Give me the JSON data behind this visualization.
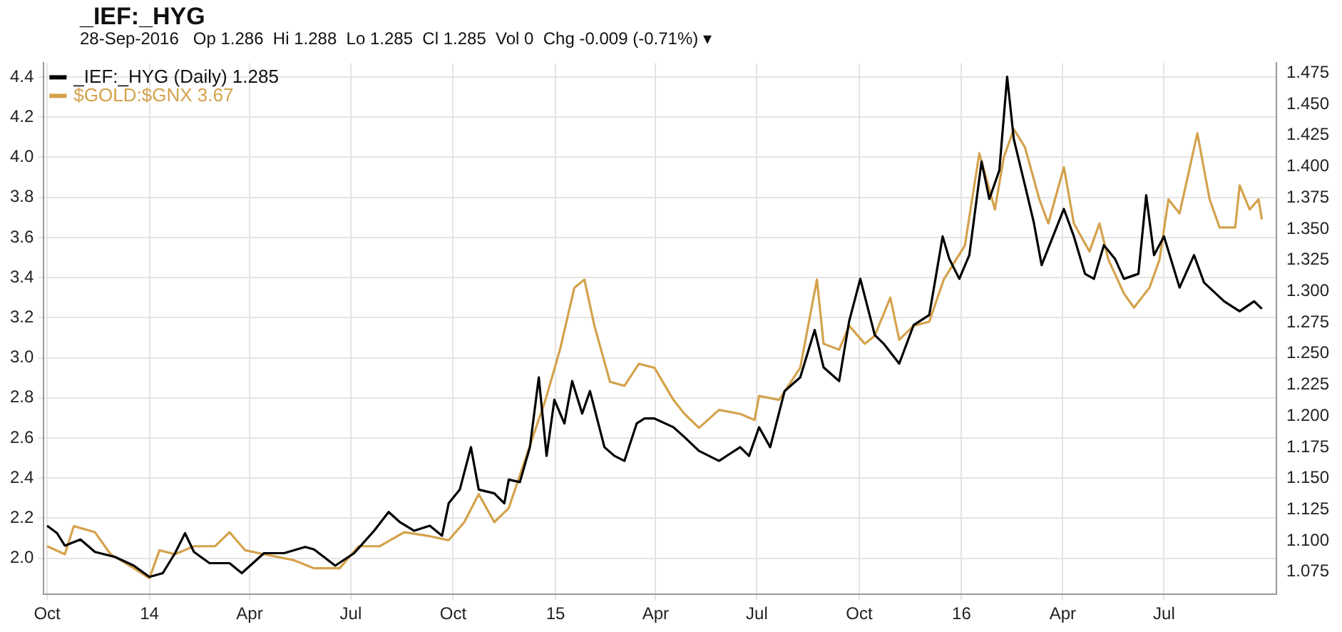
{
  "chart_data": {
    "type": "line",
    "title": "_IEF:_HYG",
    "subtitle": "28-Sep-2016   Op 1.286  Hi 1.288  Lo 1.285  Cl 1.285  Vol 0  Chg -0.009 (-0.71%) ▾",
    "legend": "top left",
    "grid": true,
    "marker": "none",
    "line_style": "solid",
    "xlim": [
      "2013-09-28",
      "2016-10-10"
    ],
    "xticks": [
      {
        "value": "2013-10-01",
        "label": "Oct"
      },
      {
        "value": "2014-01-01",
        "label": "14"
      },
      {
        "value": "2014-04-01",
        "label": "Apr"
      },
      {
        "value": "2014-07-01",
        "label": "Jul"
      },
      {
        "value": "2014-10-01",
        "label": "Oct"
      },
      {
        "value": "2015-01-01",
        "label": "15"
      },
      {
        "value": "2015-04-01",
        "label": "Apr"
      },
      {
        "value": "2015-07-01",
        "label": "Jul"
      },
      {
        "value": "2015-10-01",
        "label": "Oct"
      },
      {
        "value": "2016-01-01",
        "label": "16"
      },
      {
        "value": "2016-04-01",
        "label": "Apr"
      },
      {
        "value": "2016-07-01",
        "label": "Jul"
      }
    ],
    "ylim": [
      1.82,
      4.47
    ],
    "yticks": [
      {
        "value": 2,
        "label": "2.0"
      },
      {
        "value": 2.2,
        "label": "2.2"
      },
      {
        "value": 2.4,
        "label": "2.4"
      },
      {
        "value": 2.6,
        "label": "2.6"
      },
      {
        "value": 2.8,
        "label": "2.8"
      },
      {
        "value": 3,
        "label": "3.0"
      },
      {
        "value": 3.2,
        "label": "3.2"
      },
      {
        "value": 3.4,
        "label": "3.4"
      },
      {
        "value": 3.6,
        "label": "3.6"
      },
      {
        "value": 3.8,
        "label": "3.8"
      },
      {
        "value": 4,
        "label": "4.0"
      },
      {
        "value": 4.2,
        "label": "4.2"
      },
      {
        "value": 4.4,
        "label": "4.4"
      }
    ],
    "y2lim": [
      1.057,
      1.483
    ],
    "y2ticks": [
      1.075,
      {
        "value": 1.1,
        "label": "1.100"
      },
      1.125,
      {
        "value": 1.15,
        "label": "1.150"
      },
      1.175,
      {
        "value": 1.2,
        "label": "1.200"
      },
      1.225,
      {
        "value": 1.25,
        "label": "1.250"
      },
      1.275,
      {
        "value": 1.3,
        "label": "1.300"
      },
      1.325,
      {
        "value": 1.35,
        "label": "1.350"
      },
      1.375,
      {
        "value": 1.4,
        "label": "1.400"
      },
      1.425,
      {
        "value": 1.45,
        "label": "1.450"
      },
      1.475
    ],
    "series": [
      {
        "name": "_IEF:_HYG (Daily) 1.285",
        "color": "#000000",
        "axis": "y2",
        "x": [
          "2013-10-01",
          "2013-10-10",
          "2013-10-17",
          "2013-10-31",
          "2013-11-13",
          "2013-12-01",
          "2013-12-18",
          "2014-01-01",
          "2014-01-13",
          "2014-01-24",
          "2014-02-02",
          "2014-02-10",
          "2014-02-24",
          "2014-03-14",
          "2014-03-25",
          "2014-04-14",
          "2014-05-02",
          "2014-05-21",
          "2014-05-29",
          "2014-06-17",
          "2014-07-04",
          "2014-07-22",
          "2014-08-04",
          "2014-08-14",
          "2014-08-27",
          "2014-09-10",
          "2014-09-21",
          "2014-09-27",
          "2014-10-07",
          "2014-10-17",
          "2014-10-24",
          "2014-11-07",
          "2014-11-16",
          "2014-11-20",
          "2014-11-30",
          "2014-12-09",
          "2014-12-17",
          "2014-12-24",
          "2014-12-31",
          "2015-01-09",
          "2015-01-16",
          "2015-01-25",
          "2015-02-01",
          "2015-02-14",
          "2015-02-23",
          "2015-03-04",
          "2015-03-15",
          "2015-03-22",
          "2015-03-31",
          "2015-04-17",
          "2015-04-27",
          "2015-05-10",
          "2015-05-28",
          "2015-06-16",
          "2015-06-24",
          "2015-07-03",
          "2015-07-13",
          "2015-07-26",
          "2015-08-09",
          "2015-08-22",
          "2015-08-30",
          "2015-09-13",
          "2015-09-22",
          "2015-10-02",
          "2015-10-15",
          "2015-10-23",
          "2015-11-06",
          "2015-11-19",
          "2015-12-03",
          "2015-12-08",
          "2015-12-15",
          "2015-12-21",
          "2015-12-30",
          "2016-01-08",
          "2016-01-19",
          "2016-01-26",
          "2016-02-04",
          "2016-02-11",
          "2016-02-17",
          "2016-02-27",
          "2016-03-06",
          "2016-03-13",
          "2016-03-25",
          "2016-04-02",
          "2016-04-11",
          "2016-04-21",
          "2016-04-29",
          "2016-05-08",
          "2016-05-18",
          "2016-05-26",
          "2016-06-08",
          "2016-06-15",
          "2016-06-22",
          "2016-07-01",
          "2016-07-15",
          "2016-07-28",
          "2016-08-06",
          "2016-08-24",
          "2016-09-07",
          "2016-09-20",
          "2016-09-27"
        ],
        "values": [
          1.112,
          1.106,
          1.096,
          1.101,
          1.091,
          1.087,
          1.08,
          1.071,
          1.074,
          1.09,
          1.106,
          1.091,
          1.082,
          1.082,
          1.074,
          1.09,
          1.09,
          1.095,
          1.093,
          1.08,
          1.09,
          1.108,
          1.123,
          1.115,
          1.108,
          1.112,
          1.104,
          1.13,
          1.141,
          1.175,
          1.141,
          1.138,
          1.13,
          1.149,
          1.147,
          1.175,
          1.231,
          1.168,
          1.213,
          1.194,
          1.228,
          1.202,
          1.22,
          1.175,
          1.168,
          1.164,
          1.194,
          1.198,
          1.198,
          1.191,
          1.183,
          1.172,
          1.164,
          1.175,
          1.168,
          1.191,
          1.175,
          1.22,
          1.231,
          1.269,
          1.239,
          1.228,
          1.276,
          1.31,
          1.265,
          1.258,
          1.242,
          1.273,
          1.281,
          1.307,
          1.344,
          1.326,
          1.31,
          1.329,
          1.404,
          1.374,
          1.397,
          1.472,
          1.422,
          1.385,
          1.355,
          1.321,
          1.348,
          1.366,
          1.344,
          1.314,
          1.31,
          1.337,
          1.326,
          1.31,
          1.314,
          1.377,
          1.329,
          1.344,
          1.303,
          1.329,
          1.307,
          1.292,
          1.284,
          1.292,
          1.286
        ]
      },
      {
        "name": "$GOLD:$GNX 3.67",
        "color": "#d4a24c",
        "x": [
          "2013-10-01",
          "2013-10-17",
          "2013-10-25",
          "2013-11-13",
          "2013-11-27",
          "2013-12-18",
          "2014-01-01",
          "2014-01-10",
          "2014-01-24",
          "2014-02-10",
          "2014-03-01",
          "2014-03-14",
          "2014-03-28",
          "2014-04-14",
          "2014-05-11",
          "2014-05-29",
          "2014-06-21",
          "2014-07-08",
          "2014-07-27",
          "2014-08-18",
          "2014-09-10",
          "2014-09-27",
          "2014-10-11",
          "2014-10-24",
          "2014-11-07",
          "2014-11-20",
          "2014-12-04",
          "2014-12-23",
          "2015-01-05",
          "2015-01-18",
          "2015-01-27",
          "2015-02-05",
          "2015-02-19",
          "2015-03-04",
          "2015-03-17",
          "2015-03-31",
          "2015-04-17",
          "2015-04-27",
          "2015-05-10",
          "2015-05-28",
          "2015-06-16",
          "2015-06-29",
          "2015-07-03",
          "2015-07-21",
          "2015-08-09",
          "2015-08-24",
          "2015-08-30",
          "2015-09-13",
          "2015-09-22",
          "2015-10-06",
          "2015-10-15",
          "2015-10-29",
          "2015-11-06",
          "2015-11-19",
          "2015-12-03",
          "2015-12-16",
          "2016-01-04",
          "2016-01-17",
          "2016-01-31",
          "2016-02-08",
          "2016-02-17",
          "2016-02-27",
          "2016-03-11",
          "2016-03-19",
          "2016-04-02",
          "2016-04-11",
          "2016-04-25",
          "2016-05-04",
          "2016-05-12",
          "2016-05-26",
          "2016-06-04",
          "2016-06-18",
          "2016-06-27",
          "2016-07-05",
          "2016-07-15",
          "2016-07-31",
          "2016-08-11",
          "2016-08-20",
          "2016-09-03",
          "2016-09-07",
          "2016-09-16",
          "2016-09-24",
          "2016-09-27"
        ],
        "values": [
          2.06,
          2.02,
          2.16,
          2.13,
          2.02,
          1.95,
          1.9,
          2.04,
          2.02,
          2.06,
          2.06,
          2.13,
          2.04,
          2.02,
          1.99,
          1.95,
          1.95,
          2.06,
          2.06,
          2.13,
          2.11,
          2.09,
          2.18,
          2.32,
          2.18,
          2.25,
          2.48,
          2.79,
          3.04,
          3.35,
          3.39,
          3.16,
          2.88,
          2.86,
          2.97,
          2.95,
          2.79,
          2.72,
          2.65,
          2.74,
          2.72,
          2.69,
          2.81,
          2.79,
          2.95,
          3.39,
          3.07,
          3.04,
          3.16,
          3.07,
          3.11,
          3.3,
          3.09,
          3.16,
          3.18,
          3.39,
          3.56,
          4.02,
          3.74,
          4.0,
          4.14,
          4.05,
          3.79,
          3.67,
          3.95,
          3.67,
          3.53,
          3.67,
          3.49,
          3.32,
          3.25,
          3.35,
          3.49,
          3.79,
          3.72,
          4.12,
          3.79,
          3.65,
          3.65,
          3.86,
          3.74,
          3.79,
          3.69
        ]
      }
    ]
  }
}
